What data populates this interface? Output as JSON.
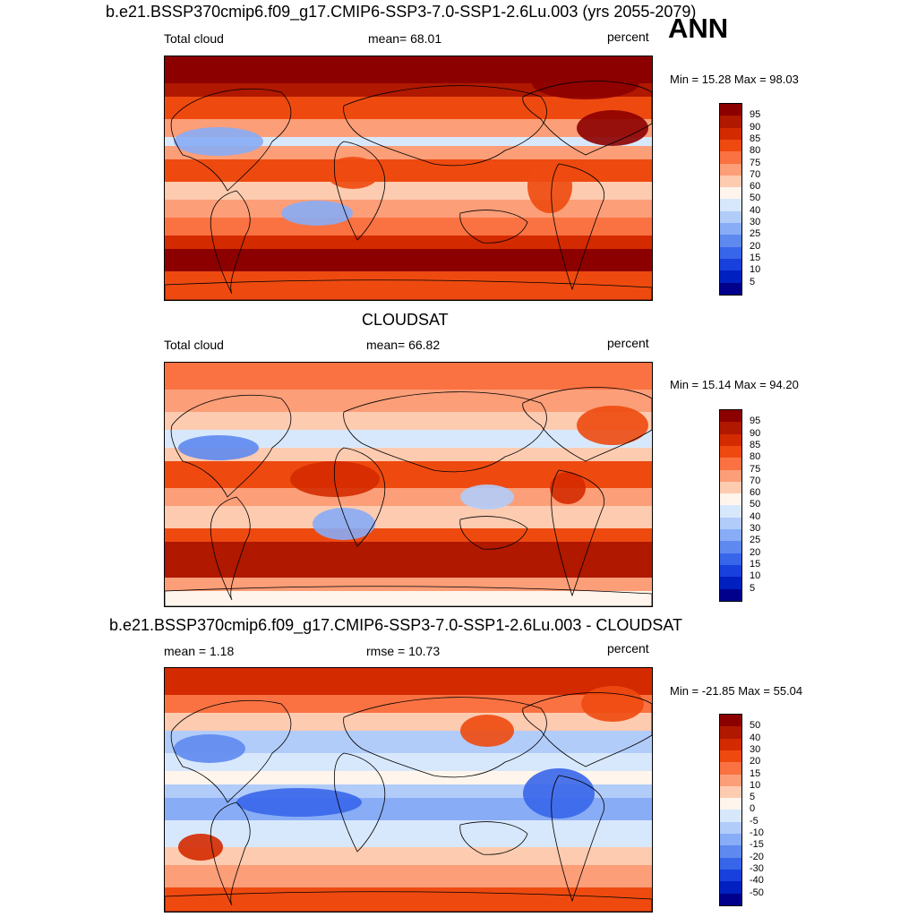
{
  "season": "ANN",
  "panels": [
    {
      "title": "b.e21.BSSP370cmip6.f09_g17.CMIP6-SSP3-7.0-SSP1-2.6Lu.003 (yrs 2055-2079)",
      "left_label": "Total cloud",
      "center_label": "mean=  68.01",
      "units": "percent",
      "minmax": "Min =  15.28 Max =  98.03"
    },
    {
      "title": "CLOUDSAT",
      "left_label": "Total cloud",
      "center_label": "mean=  66.82",
      "units": "percent",
      "minmax": "Min =  15.14 Max =  94.20"
    },
    {
      "title": "b.e21.BSSP370cmip6.f09_g17.CMIP6-SSP3-7.0-SSP1-2.6Lu.003 - CLOUDSAT",
      "left_label": "mean =   1.18",
      "center_label": "rmse =  10.73",
      "units": "percent",
      "minmax": "Min = -21.85 Max =  55.04"
    }
  ],
  "chart_data": [
    {
      "type": "heatmap",
      "title": "b.e21.BSSP370cmip6.f09_g17.CMIP6-SSP3-7.0-SSP1-2.6Lu.003 (yrs 2055-2079)",
      "variable": "Total cloud",
      "units": "percent",
      "mean": 68.01,
      "min": 15.28,
      "max": 98.03,
      "colorbar_levels": [
        "95",
        "90",
        "85",
        "80",
        "75",
        "70",
        "60",
        "50",
        "40",
        "30",
        "25",
        "20",
        "15",
        "10",
        "5"
      ],
      "colors": [
        "#8c0000",
        "#b01800",
        "#d42a00",
        "#ee4a10",
        "#fa7242",
        "#fc9e78",
        "#fdcbb0",
        "#fff5ec",
        "#d8e8fc",
        "#b2ccfa",
        "#88acf6",
        "#5e8af0",
        "#3866ea",
        "#1840dc",
        "#0020c0",
        "#00008c"
      ]
    },
    {
      "type": "heatmap",
      "title": "CLOUDSAT",
      "variable": "Total cloud",
      "units": "percent",
      "mean": 66.82,
      "min": 15.14,
      "max": 94.2,
      "colorbar_levels": [
        "95",
        "90",
        "85",
        "80",
        "75",
        "70",
        "60",
        "50",
        "40",
        "30",
        "25",
        "20",
        "15",
        "10",
        "5"
      ],
      "colors": [
        "#8c0000",
        "#b01800",
        "#d42a00",
        "#ee4a10",
        "#fa7242",
        "#fc9e78",
        "#fdcbb0",
        "#fff5ec",
        "#d8e8fc",
        "#b2ccfa",
        "#88acf6",
        "#5e8af0",
        "#3866ea",
        "#1840dc",
        "#0020c0",
        "#00008c"
      ]
    },
    {
      "type": "heatmap",
      "title": "b.e21.BSSP370cmip6.f09_g17.CMIP6-SSP3-7.0-SSP1-2.6Lu.003 - CLOUDSAT",
      "units": "percent",
      "mean": 1.18,
      "rmse": 10.73,
      "min": -21.85,
      "max": 55.04,
      "colorbar_levels": [
        "50",
        "40",
        "30",
        "20",
        "15",
        "10",
        "5",
        "0",
        "-5",
        "-10",
        "-15",
        "-20",
        "-30",
        "-40",
        "-50"
      ],
      "colors": [
        "#8c0000",
        "#b01800",
        "#d42a00",
        "#ee4a10",
        "#fa7242",
        "#fc9e78",
        "#fdcbb0",
        "#fff5ec",
        "#d8e8fc",
        "#b2ccfa",
        "#88acf6",
        "#5e8af0",
        "#3866ea",
        "#1840dc",
        "#0020c0",
        "#00008c"
      ]
    }
  ]
}
